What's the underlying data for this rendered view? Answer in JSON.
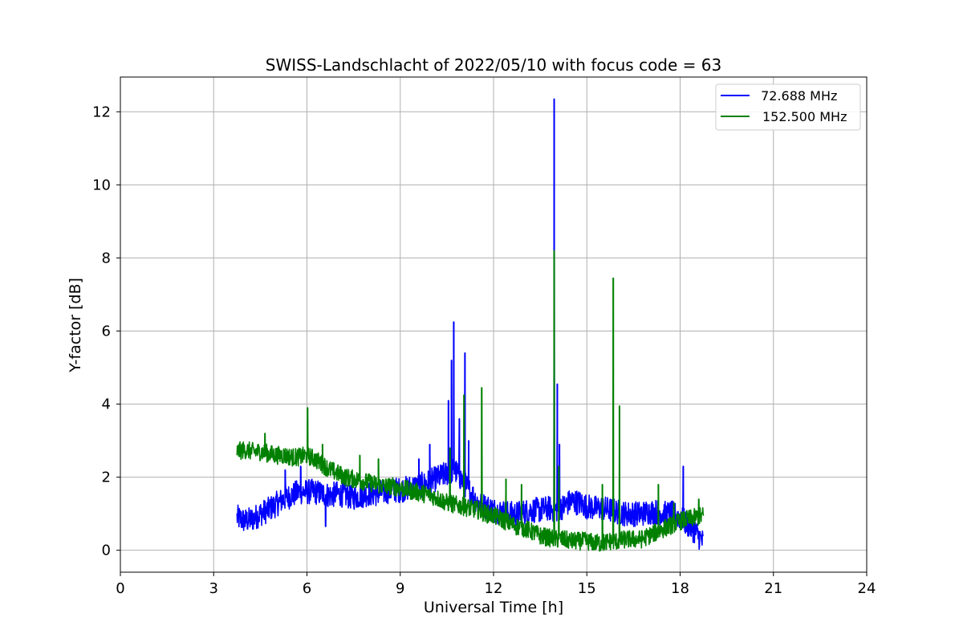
{
  "chart_data": {
    "type": "line",
    "title": "SWISS-Landschlacht of 2022/05/10 with focus code = 63",
    "xlabel": "Universal Time [h]",
    "ylabel": "Y-factor [dB]",
    "xlim": [
      0,
      24
    ],
    "ylim": [
      -0.6,
      12.95
    ],
    "xticks": [
      0,
      3,
      6,
      9,
      12,
      15,
      18,
      21,
      24
    ],
    "yticks": [
      0,
      2,
      4,
      6,
      8,
      10,
      12
    ],
    "grid": true,
    "legend_position": "top-right",
    "series": [
      {
        "name": " 72.688 MHz",
        "color": "#0000ff",
        "x": [
          3.75,
          4.0,
          4.25,
          4.5,
          4.75,
          5.0,
          5.25,
          5.5,
          5.75,
          6.0,
          6.25,
          6.5,
          6.75,
          7.0,
          7.25,
          7.5,
          7.75,
          8.0,
          8.25,
          8.5,
          8.75,
          9.0,
          9.25,
          9.5,
          9.75,
          10.0,
          10.25,
          10.5,
          10.75,
          11.0,
          11.25,
          11.5,
          11.75,
          12.0,
          12.25,
          12.5,
          12.75,
          13.0,
          13.25,
          13.5,
          13.75,
          14.0,
          14.25,
          14.5,
          14.75,
          15.0,
          15.25,
          15.5,
          15.75,
          16.0,
          16.25,
          16.5,
          16.75,
          17.0,
          17.25,
          17.5,
          17.75,
          18.0,
          18.25,
          18.5,
          18.75
        ],
        "y": [
          0.9,
          0.8,
          0.85,
          1.0,
          1.1,
          1.25,
          1.4,
          1.5,
          1.6,
          1.6,
          1.6,
          1.55,
          1.5,
          1.55,
          1.5,
          1.45,
          1.5,
          1.55,
          1.55,
          1.6,
          1.65,
          1.65,
          1.7,
          1.75,
          1.8,
          1.9,
          2.0,
          2.1,
          2.2,
          1.9,
          1.6,
          1.3,
          1.2,
          1.1,
          1.05,
          1.0,
          1.0,
          1.05,
          1.1,
          1.1,
          1.15,
          1.1,
          1.2,
          1.35,
          1.3,
          1.2,
          1.15,
          1.15,
          1.1,
          1.05,
          1.0,
          1.0,
          1.0,
          1.05,
          1.05,
          1.0,
          1.0,
          0.9,
          0.7,
          0.5,
          0.2
        ],
        "spikes": [
          {
            "x": 5.3,
            "y": 2.2
          },
          {
            "x": 5.8,
            "y": 2.3
          },
          {
            "x": 6.6,
            "y": 0.65
          },
          {
            "x": 9.6,
            "y": 2.5
          },
          {
            "x": 9.95,
            "y": 2.9
          },
          {
            "x": 10.55,
            "y": 4.1
          },
          {
            "x": 10.65,
            "y": 5.2
          },
          {
            "x": 10.72,
            "y": 6.25
          },
          {
            "x": 10.9,
            "y": 3.6
          },
          {
            "x": 11.08,
            "y": 5.4
          },
          {
            "x": 11.2,
            "y": 3.0
          },
          {
            "x": 13.95,
            "y": 12.35
          },
          {
            "x": 14.05,
            "y": 4.55
          },
          {
            "x": 14.12,
            "y": 2.9
          },
          {
            "x": 18.1,
            "y": 2.3
          }
        ]
      },
      {
        "name": "152.500 MHz",
        "color": "#008000",
        "x": [
          3.75,
          4.0,
          4.25,
          4.5,
          4.75,
          5.0,
          5.25,
          5.5,
          5.75,
          6.0,
          6.25,
          6.5,
          6.75,
          7.0,
          7.25,
          7.5,
          7.75,
          8.0,
          8.25,
          8.5,
          8.75,
          9.0,
          9.25,
          9.5,
          9.75,
          10.0,
          10.25,
          10.5,
          10.75,
          11.0,
          11.25,
          11.5,
          11.75,
          12.0,
          12.25,
          12.5,
          12.75,
          13.0,
          13.25,
          13.5,
          13.75,
          14.0,
          14.25,
          14.5,
          14.75,
          15.0,
          15.25,
          15.5,
          15.75,
          16.0,
          16.25,
          16.5,
          16.75,
          17.0,
          17.25,
          17.5,
          17.75,
          18.0,
          18.25,
          18.5,
          18.75
        ],
        "y": [
          2.7,
          2.75,
          2.7,
          2.7,
          2.65,
          2.6,
          2.6,
          2.55,
          2.55,
          2.6,
          2.5,
          2.35,
          2.2,
          2.1,
          2.0,
          1.95,
          1.9,
          1.85,
          1.8,
          1.75,
          1.75,
          1.7,
          1.65,
          1.6,
          1.55,
          1.5,
          1.4,
          1.3,
          1.25,
          1.2,
          1.15,
          1.1,
          1.0,
          0.95,
          0.85,
          0.75,
          0.65,
          0.6,
          0.5,
          0.4,
          0.35,
          0.3,
          0.3,
          0.25,
          0.25,
          0.25,
          0.2,
          0.2,
          0.25,
          0.25,
          0.3,
          0.3,
          0.3,
          0.4,
          0.5,
          0.6,
          0.7,
          0.8,
          0.85,
          0.9,
          0.95
        ],
        "spikes": [
          {
            "x": 4.65,
            "y": 3.2
          },
          {
            "x": 6.02,
            "y": 3.9
          },
          {
            "x": 6.5,
            "y": 2.9
          },
          {
            "x": 7.7,
            "y": 2.6
          },
          {
            "x": 8.3,
            "y": 2.5
          },
          {
            "x": 10.6,
            "y": 2.8
          },
          {
            "x": 11.05,
            "y": 4.25
          },
          {
            "x": 11.62,
            "y": 4.45
          },
          {
            "x": 12.4,
            "y": 1.95
          },
          {
            "x": 12.9,
            "y": 1.8
          },
          {
            "x": 13.95,
            "y": 8.2
          },
          {
            "x": 14.1,
            "y": 2.3
          },
          {
            "x": 15.85,
            "y": 7.45
          },
          {
            "x": 16.05,
            "y": 3.95
          },
          {
            "x": 15.5,
            "y": 1.8
          },
          {
            "x": 17.3,
            "y": 1.8
          },
          {
            "x": 17.8,
            "y": 1.3
          },
          {
            "x": 18.6,
            "y": 1.4
          }
        ]
      }
    ]
  }
}
